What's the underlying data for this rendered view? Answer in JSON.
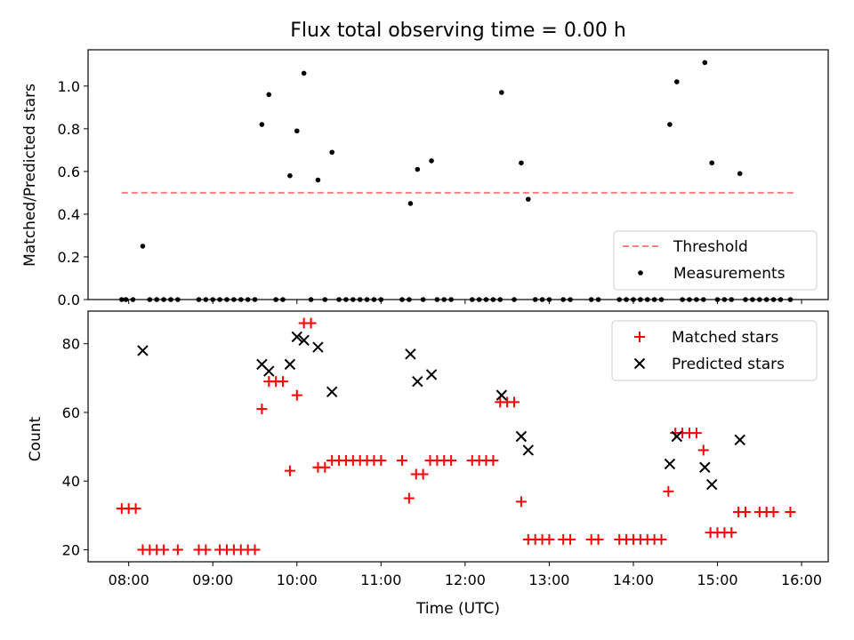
{
  "chart_data": [
    {
      "type": "scatter",
      "title": "Flux total observing time = 0.00 h",
      "xlabel": "",
      "ylabel": "Matched/Predicted stars",
      "xlim": [
        "07:31",
        "16:19"
      ],
      "ylim": [
        0,
        1.17
      ],
      "yticks": [
        "0.0",
        "0.2",
        "0.4",
        "0.6",
        "0.8",
        "1.0"
      ],
      "legend_position": "lower-right",
      "threshold": {
        "name": "Threshold",
        "value": 0.5,
        "x_range": [
          "07:55",
          "15:55"
        ],
        "color": "#ff7f7f",
        "style": "dashed"
      },
      "series": [
        {
          "name": "Measurements",
          "color": "#000000",
          "points": [
            [
              "07:55",
              0
            ],
            [
              "07:58",
              0
            ],
            [
              "08:03",
              0
            ],
            [
              "08:10",
              0.25
            ],
            [
              "08:15",
              0
            ],
            [
              "08:20",
              0
            ],
            [
              "08:25",
              0
            ],
            [
              "08:30",
              0
            ],
            [
              "08:35",
              0
            ],
            [
              "08:50",
              0
            ],
            [
              "08:55",
              0
            ],
            [
              "09:00",
              0
            ],
            [
              "09:05",
              0
            ],
            [
              "09:10",
              0
            ],
            [
              "09:15",
              0
            ],
            [
              "09:20",
              0
            ],
            [
              "09:25",
              0
            ],
            [
              "09:30",
              0
            ],
            [
              "09:35",
              0.82
            ],
            [
              "09:40",
              0.96
            ],
            [
              "09:45",
              0
            ],
            [
              "09:50",
              0
            ],
            [
              "09:55",
              0.58
            ],
            [
              "10:00",
              0.79
            ],
            [
              "10:05",
              1.06
            ],
            [
              "10:10",
              0
            ],
            [
              "10:15",
              0.56
            ],
            [
              "10:20",
              0
            ],
            [
              "10:25",
              0.69
            ],
            [
              "10:30",
              0
            ],
            [
              "10:35",
              0
            ],
            [
              "10:40",
              0
            ],
            [
              "10:45",
              0
            ],
            [
              "10:50",
              0
            ],
            [
              "10:55",
              0
            ],
            [
              "11:00",
              0
            ],
            [
              "11:15",
              0
            ],
            [
              "11:20",
              0
            ],
            [
              "11:21",
              0.45
            ],
            [
              "11:26",
              0.61
            ],
            [
              "11:30",
              0
            ],
            [
              "11:36",
              0.65
            ],
            [
              "11:40",
              0
            ],
            [
              "11:45",
              0
            ],
            [
              "11:50",
              0
            ],
            [
              "12:05",
              0
            ],
            [
              "12:10",
              0
            ],
            [
              "12:15",
              0
            ],
            [
              "12:20",
              0
            ],
            [
              "12:25",
              0
            ],
            [
              "12:26",
              0.97
            ],
            [
              "12:35",
              0
            ],
            [
              "12:40",
              0.64
            ],
            [
              "12:45",
              0.47
            ],
            [
              "12:50",
              0
            ],
            [
              "12:55",
              0
            ],
            [
              "13:00",
              0
            ],
            [
              "13:10",
              0
            ],
            [
              "13:15",
              0
            ],
            [
              "13:30",
              0
            ],
            [
              "13:35",
              0
            ],
            [
              "13:50",
              0
            ],
            [
              "13:55",
              0
            ],
            [
              "14:00",
              0
            ],
            [
              "14:05",
              0
            ],
            [
              "14:10",
              0
            ],
            [
              "14:15",
              0
            ],
            [
              "14:20",
              0
            ],
            [
              "14:26",
              0.82
            ],
            [
              "14:31",
              1.02
            ],
            [
              "14:35",
              0
            ],
            [
              "14:40",
              0
            ],
            [
              "14:45",
              0
            ],
            [
              "14:50",
              0
            ],
            [
              "14:51",
              1.11
            ],
            [
              "14:56",
              0.64
            ],
            [
              "15:00",
              0
            ],
            [
              "15:05",
              0
            ],
            [
              "15:10",
              0
            ],
            [
              "15:16",
              0.59
            ],
            [
              "15:20",
              0
            ],
            [
              "15:25",
              0
            ],
            [
              "15:30",
              0
            ],
            [
              "15:35",
              0
            ],
            [
              "15:40",
              0
            ],
            [
              "15:45",
              0
            ],
            [
              "15:52",
              0
            ]
          ]
        }
      ]
    },
    {
      "type": "scatter",
      "title": "",
      "xlabel": "Time (UTC)",
      "ylabel": "Count",
      "xlim": [
        "07:31",
        "16:19"
      ],
      "ylim": [
        16.5,
        89.5
      ],
      "xticks": [
        "08:00",
        "09:00",
        "10:00",
        "11:00",
        "12:00",
        "13:00",
        "14:00",
        "15:00",
        "16:00"
      ],
      "yticks": [
        "20",
        "40",
        "60",
        "80"
      ],
      "legend_position": "top-right",
      "series": [
        {
          "name": "Matched stars",
          "color": "#ff0000",
          "marker": "+",
          "points": [
            [
              "07:55",
              32
            ],
            [
              "08:00",
              32
            ],
            [
              "08:05",
              32
            ],
            [
              "08:10",
              20
            ],
            [
              "08:15",
              20
            ],
            [
              "08:20",
              20
            ],
            [
              "08:25",
              20
            ],
            [
              "08:35",
              20
            ],
            [
              "08:50",
              20
            ],
            [
              "08:55",
              20
            ],
            [
              "09:05",
              20
            ],
            [
              "09:10",
              20
            ],
            [
              "09:15",
              20
            ],
            [
              "09:20",
              20
            ],
            [
              "09:25",
              20
            ],
            [
              "09:30",
              20
            ],
            [
              "09:35",
              61
            ],
            [
              "09:40",
              69
            ],
            [
              "09:45",
              69
            ],
            [
              "09:50",
              69
            ],
            [
              "09:55",
              43
            ],
            [
              "10:00",
              65
            ],
            [
              "10:05",
              86
            ],
            [
              "10:10",
              86
            ],
            [
              "10:15",
              44
            ],
            [
              "10:20",
              44
            ],
            [
              "10:25",
              46
            ],
            [
              "10:30",
              46
            ],
            [
              "10:35",
              46
            ],
            [
              "10:40",
              46
            ],
            [
              "10:45",
              46
            ],
            [
              "10:50",
              46
            ],
            [
              "10:55",
              46
            ],
            [
              "11:00",
              46
            ],
            [
              "11:15",
              46
            ],
            [
              "11:20",
              35
            ],
            [
              "11:25",
              42
            ],
            [
              "11:30",
              42
            ],
            [
              "11:35",
              46
            ],
            [
              "11:40",
              46
            ],
            [
              "11:45",
              46
            ],
            [
              "11:50",
              46
            ],
            [
              "12:05",
              46
            ],
            [
              "12:10",
              46
            ],
            [
              "12:15",
              46
            ],
            [
              "12:20",
              46
            ],
            [
              "12:25",
              63
            ],
            [
              "12:30",
              63
            ],
            [
              "12:35",
              63
            ],
            [
              "12:40",
              34
            ],
            [
              "12:45",
              23
            ],
            [
              "12:50",
              23
            ],
            [
              "12:55",
              23
            ],
            [
              "13:00",
              23
            ],
            [
              "13:10",
              23
            ],
            [
              "13:15",
              23
            ],
            [
              "13:30",
              23
            ],
            [
              "13:35",
              23
            ],
            [
              "13:50",
              23
            ],
            [
              "13:55",
              23
            ],
            [
              "14:00",
              23
            ],
            [
              "14:05",
              23
            ],
            [
              "14:10",
              23
            ],
            [
              "14:15",
              23
            ],
            [
              "14:20",
              23
            ],
            [
              "14:25",
              37
            ],
            [
              "14:30",
              54
            ],
            [
              "14:35",
              54
            ],
            [
              "14:40",
              54
            ],
            [
              "14:45",
              54
            ],
            [
              "14:50",
              49
            ],
            [
              "14:55",
              25
            ],
            [
              "15:00",
              25
            ],
            [
              "15:05",
              25
            ],
            [
              "15:10",
              25
            ],
            [
              "15:15",
              31
            ],
            [
              "15:20",
              31
            ],
            [
              "15:30",
              31
            ],
            [
              "15:35",
              31
            ],
            [
              "15:40",
              31
            ],
            [
              "15:52",
              31
            ]
          ]
        },
        {
          "name": "Predicted stars",
          "color": "#000000",
          "marker": "x",
          "points": [
            [
              "08:10",
              78
            ],
            [
              "09:35",
              74
            ],
            [
              "09:40",
              72
            ],
            [
              "09:55",
              74
            ],
            [
              "10:00",
              82
            ],
            [
              "10:05",
              81
            ],
            [
              "10:15",
              79
            ],
            [
              "10:25",
              66
            ],
            [
              "11:21",
              77
            ],
            [
              "11:26",
              69
            ],
            [
              "11:36",
              71
            ],
            [
              "12:26",
              65
            ],
            [
              "12:40",
              53
            ],
            [
              "12:45",
              49
            ],
            [
              "14:26",
              45
            ],
            [
              "14:31",
              53
            ],
            [
              "14:51",
              44
            ],
            [
              "14:56",
              39
            ],
            [
              "15:16",
              52
            ]
          ]
        }
      ]
    }
  ]
}
